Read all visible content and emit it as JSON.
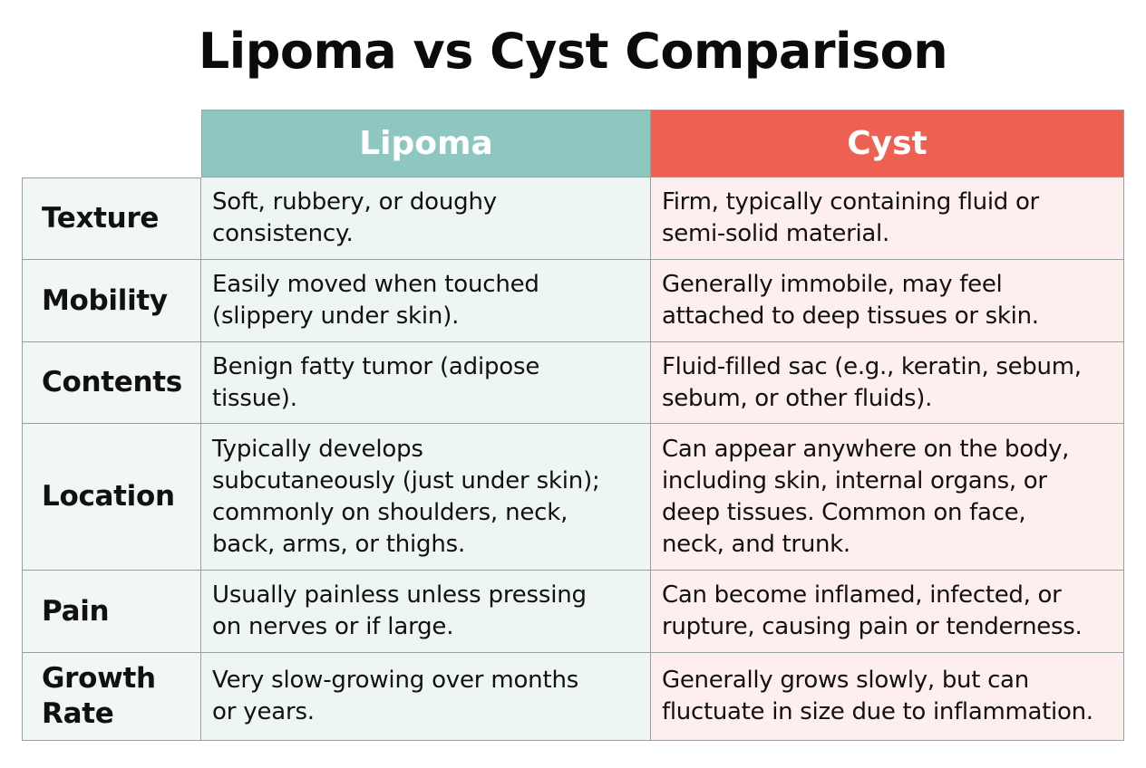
{
  "title": "Lipoma vs Cyst Comparison",
  "colors": {
    "lipoma_header": "#8ec7bf",
    "cyst_header": "#ee6152",
    "lipoma_cell": "#edf6f4",
    "cyst_cell": "#fcefed",
    "row_label_cell": "#f1f7f6"
  },
  "columns": {
    "lipoma": "Lipoma",
    "cyst": "Cyst"
  },
  "rows": [
    {
      "label": "Texture",
      "lipoma": "Soft, rubbery, or doughy\nconsistency.",
      "cyst": "Firm, typically containing fluid or\nsemi-solid material."
    },
    {
      "label": "Mobility",
      "lipoma": "Easily moved when touched\n(slippery under skin).",
      "cyst": "Generally immobile, may feel\nattached to deep tissues or skin."
    },
    {
      "label": "Contents",
      "lipoma": "Benign fatty tumor (adipose\ntissue).",
      "cyst": "Fluid-filled sac (e.g., keratin, sebum,\nsebum, or other fluids)."
    },
    {
      "label": "Location",
      "lipoma": "Typically develops\nsubcutaneously (just under skin);\ncommonly on shoulders, neck,\nback, arms, or thighs.",
      "cyst": "Can appear anywhere on the body,\nincluding skin, internal organs, or\ndeep tissues. Common on face,\nneck, and trunk."
    },
    {
      "label": "Pain",
      "lipoma": "Usually painless unless pressing\non nerves or if large.",
      "cyst": "Can become inflamed, infected, or\nrupture, causing pain or tenderness."
    },
    {
      "label": "Growth\nRate",
      "lipoma": "Very slow-growing over months\nor years.",
      "cyst": "Generally grows slowly, but can\nfluctuate in size due to inflammation."
    }
  ]
}
